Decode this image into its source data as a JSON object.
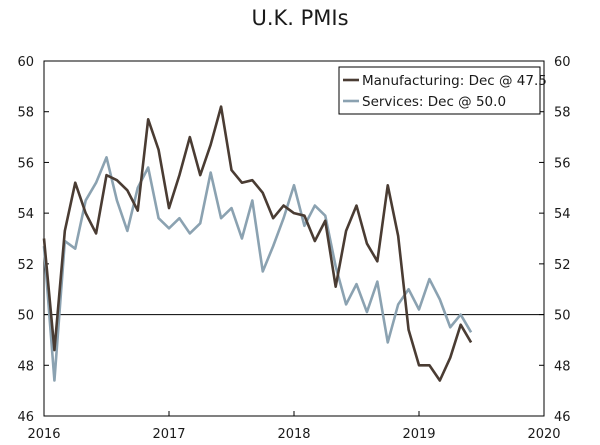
{
  "chart_data": {
    "type": "line",
    "title": "U.K. PMIs",
    "xlabel": "",
    "ylabel": "",
    "ylim": [
      46,
      60
    ],
    "xlim": [
      2016.0,
      2020.0
    ],
    "y_ticks": [
      46,
      48,
      50,
      52,
      54,
      56,
      58,
      60
    ],
    "x_ticks": [
      "2016",
      "2017",
      "2018",
      "2019",
      "2020"
    ],
    "reference_line": 50,
    "grid": false,
    "legend_position": "top-right",
    "x": [
      "2016-01",
      "2016-02",
      "2016-03",
      "2016-04",
      "2016-05",
      "2016-06",
      "2016-07",
      "2016-08",
      "2016-09",
      "2016-10",
      "2016-11",
      "2016-12",
      "2017-01",
      "2017-02",
      "2017-03",
      "2017-04",
      "2017-05",
      "2017-06",
      "2017-07",
      "2017-08",
      "2017-09",
      "2017-10",
      "2017-11",
      "2017-12",
      "2018-01",
      "2018-02",
      "2018-03",
      "2018-04",
      "2018-05",
      "2018-06",
      "2018-07",
      "2018-08",
      "2018-09",
      "2018-10",
      "2018-11",
      "2018-12",
      "2019-01",
      "2019-02",
      "2019-03",
      "2019-04",
      "2019-05",
      "2019-06",
      "2019-07",
      "2019-08",
      "2019-09",
      "2019-10"
    ],
    "series": [
      {
        "name": "Manufacturing: Dec @ 47.5",
        "color": "#4a3c33",
        "values": [
          53.0,
          48.6,
          53.3,
          55.2,
          54.0,
          53.2,
          55.5,
          55.3,
          54.9,
          54.1,
          57.7,
          56.5,
          54.2,
          55.5,
          57.0,
          55.5,
          56.7,
          58.2,
          55.7,
          55.2,
          55.3,
          54.8,
          53.8,
          54.3,
          54.0,
          53.9,
          52.9,
          53.7,
          51.1,
          53.3,
          54.3,
          52.8,
          52.1,
          55.1,
          53.1,
          49.4,
          48.0,
          48.0,
          47.4,
          48.3,
          49.6,
          48.9,
          null,
          null,
          null,
          null
        ]
      },
      {
        "name": "Services: Dec @ 50.0",
        "color": "#8ba2b1",
        "values": [
          52.7,
          47.4,
          52.9,
          52.6,
          54.5,
          55.2,
          56.2,
          54.5,
          53.3,
          55.0,
          55.8,
          53.8,
          53.4,
          53.8,
          53.2,
          53.6,
          55.6,
          53.8,
          54.2,
          53.0,
          54.5,
          51.7,
          52.7,
          53.8,
          55.1,
          53.5,
          54.3,
          53.9,
          51.9,
          50.4,
          51.2,
          50.1,
          51.3,
          48.9,
          50.4,
          51.0,
          50.2,
          51.4,
          50.6,
          49.5,
          50.0,
          49.3,
          null,
          null,
          null,
          null
        ]
      }
    ]
  }
}
